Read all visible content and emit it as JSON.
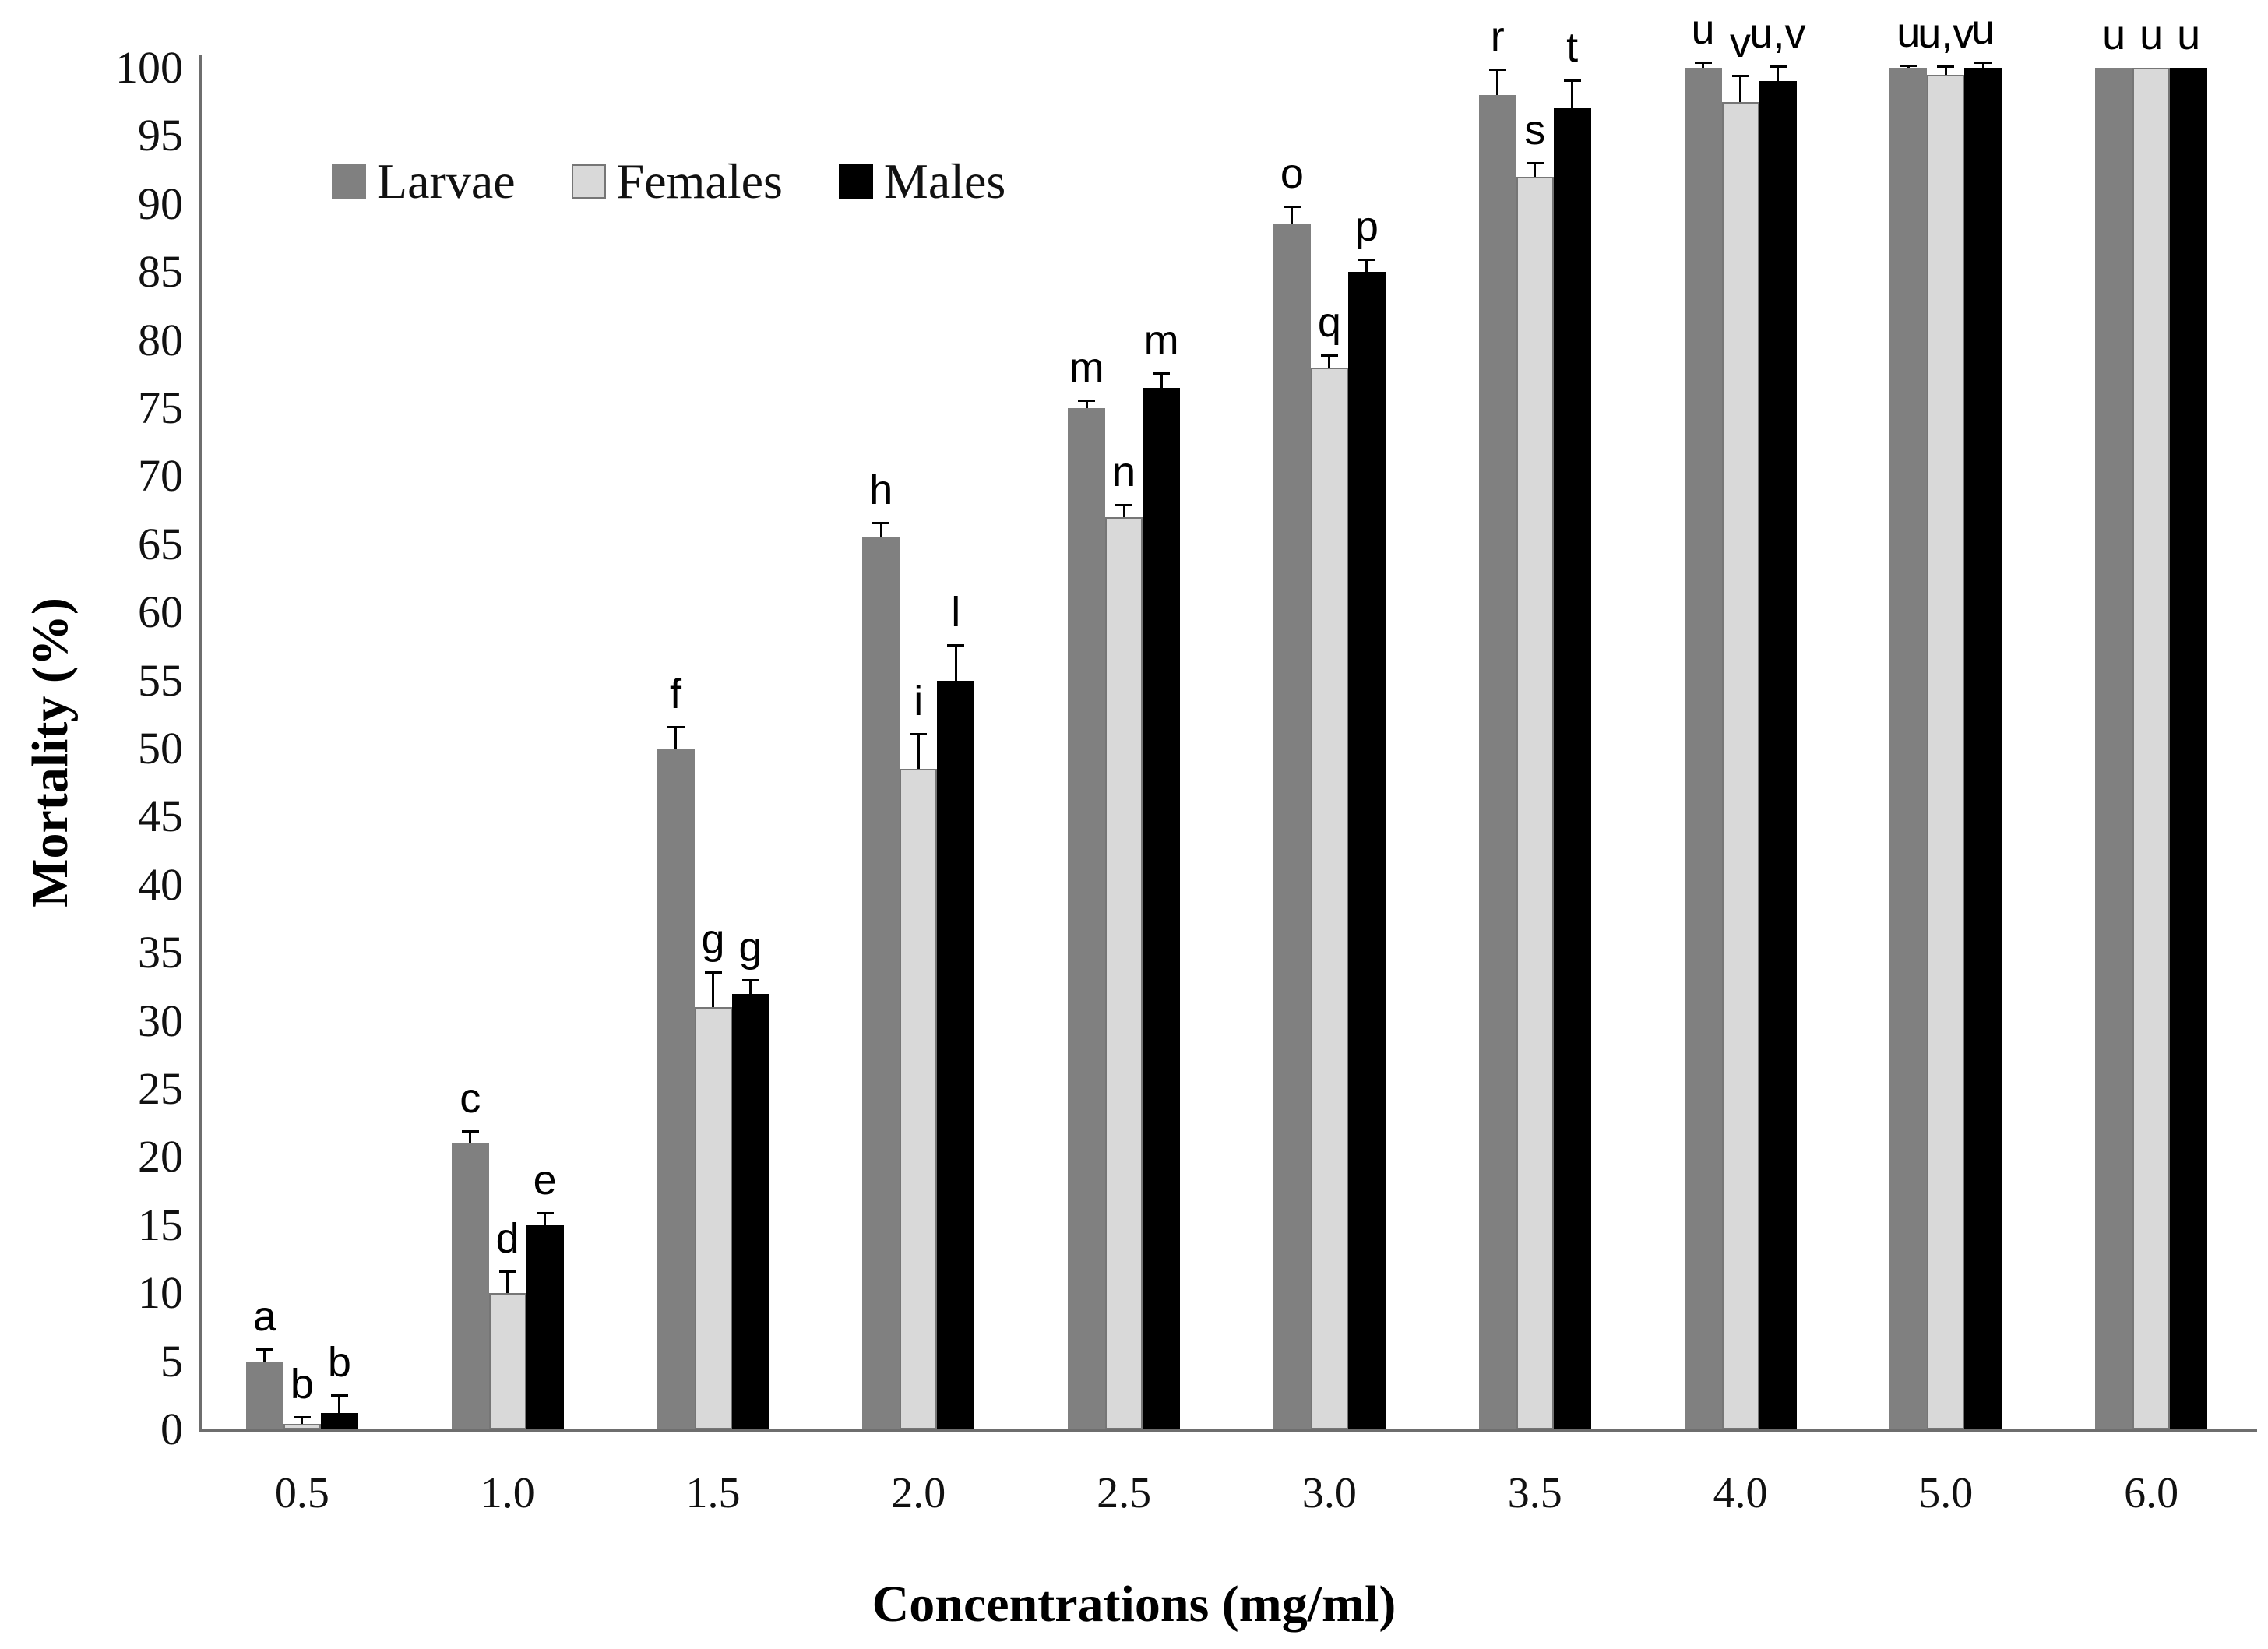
{
  "chart_data": {
    "type": "bar",
    "title": "",
    "xlabel": "Concentrations (mg/ml)",
    "ylabel": "Mortality (%)",
    "ylim": [
      0,
      100
    ],
    "y_tick_step": 5,
    "y_ticks": [
      0,
      5,
      10,
      15,
      20,
      25,
      30,
      35,
      40,
      45,
      50,
      55,
      60,
      65,
      70,
      75,
      80,
      85,
      90,
      95,
      100
    ],
    "grid": false,
    "legend_position": "top-left-inside",
    "error_bars": "upper",
    "categories": [
      "0.5",
      "1.0",
      "1.5",
      "2.0",
      "2.5",
      "3.0",
      "3.5",
      "4.0",
      "5.0",
      "6.0"
    ],
    "series": [
      {
        "name": "Larvae",
        "color": "#808080",
        "border_color": "#6a6a6a",
        "values": [
          5,
          21,
          50,
          65.5,
          75,
          88.5,
          98,
          100,
          100,
          100
        ],
        "errors": [
          0.9,
          0.9,
          1.6,
          1.1,
          0.6,
          1.3,
          1.9,
          0.4,
          0.2,
          0
        ],
        "letters": [
          "a",
          "c",
          "f",
          "h",
          "m",
          "o",
          "r",
          "u",
          "u",
          "u"
        ]
      },
      {
        "name": "Females",
        "color": "#d9d9d9",
        "border_color": "#767676",
        "values": [
          0.4,
          10,
          31,
          48.5,
          67,
          78,
          92,
          97.5,
          99.5,
          100
        ],
        "errors": [
          0.5,
          1.6,
          2.6,
          2.6,
          0.9,
          0.9,
          1.0,
          1.9,
          0.6,
          0
        ],
        "letters": [
          "b",
          "d",
          "g",
          "i",
          "n",
          "q",
          "s",
          "v",
          "u,v",
          "u"
        ]
      },
      {
        "name": "Males",
        "color": "#000000",
        "border_color": "#000000",
        "values": [
          1.2,
          15,
          32,
          55,
          76.5,
          85,
          97,
          99,
          100,
          100
        ],
        "errors": [
          1.3,
          0.9,
          1.0,
          2.6,
          1.1,
          0.9,
          2.1,
          1.1,
          0.4,
          0
        ],
        "letters": [
          "b",
          "e",
          "g",
          "l",
          "m",
          "p",
          "t",
          "u,v",
          "u",
          "u"
        ]
      }
    ]
  }
}
